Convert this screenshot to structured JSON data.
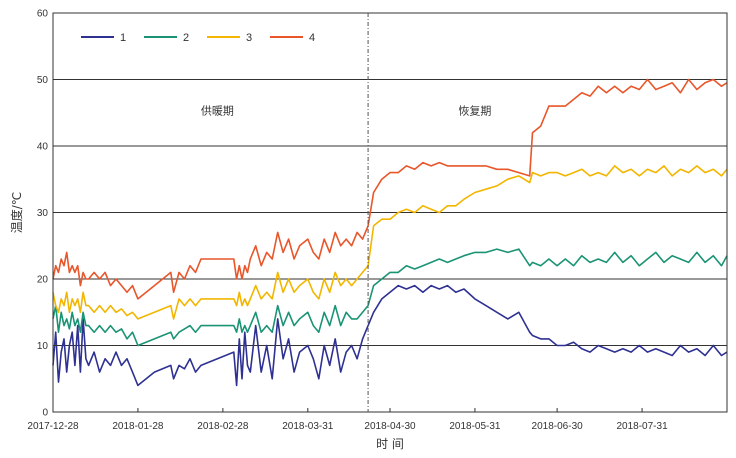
{
  "chart_data": {
    "type": "line",
    "xlabel": "时 间",
    "ylabel": "温度/℃",
    "ylim": [
      0,
      60
    ],
    "yticks": [
      0,
      10,
      20,
      30,
      40,
      50,
      60
    ],
    "xlim": [
      "2017-12-28",
      "2018-08-31"
    ],
    "xticks": [
      "2017-12-28",
      "2018-01-28",
      "2018-02-28",
      "2018-03-31",
      "2018-04-30",
      "2018-05-31",
      "2018-06-30",
      "2018-07-31"
    ],
    "grid": "horizontal",
    "legend_position": "top-left",
    "divider_date": "2018-04-22",
    "annotations": [
      {
        "text": "供暖期",
        "x": "2018-02-26",
        "y": 44.7
      },
      {
        "text": "恢复期",
        "x": "2018-05-31",
        "y": 44.7
      }
    ],
    "series": [
      {
        "name": "1",
        "color": "#2e3192",
        "x": [
          "2017-12-28",
          "2017-12-29",
          "2017-12-30",
          "2017-12-31",
          "2018-01-01",
          "2018-01-02",
          "2018-01-03",
          "2018-01-04",
          "2018-01-05",
          "2018-01-06",
          "2018-01-07",
          "2018-01-08",
          "2018-01-09",
          "2018-01-10",
          "2018-01-12",
          "2018-01-14",
          "2018-01-16",
          "2018-01-18",
          "2018-01-20",
          "2018-01-22",
          "2018-01-24",
          "2018-01-26",
          "2018-01-28",
          "2018-02-03",
          "2018-02-09",
          "2018-02-10",
          "2018-02-12",
          "2018-02-14",
          "2018-02-16",
          "2018-02-18",
          "2018-02-20",
          "2018-03-04",
          "2018-03-05",
          "2018-03-06",
          "2018-03-07",
          "2018-03-08",
          "2018-03-09",
          "2018-03-10",
          "2018-03-12",
          "2018-03-14",
          "2018-03-16",
          "2018-03-18",
          "2018-03-20",
          "2018-03-22",
          "2018-03-24",
          "2018-03-26",
          "2018-03-28",
          "2018-03-31",
          "2018-04-02",
          "2018-04-04",
          "2018-04-06",
          "2018-04-08",
          "2018-04-10",
          "2018-04-12",
          "2018-04-14",
          "2018-04-16",
          "2018-04-18",
          "2018-04-20",
          "2018-04-22",
          "2018-04-24",
          "2018-04-27",
          "2018-04-30",
          "2018-05-03",
          "2018-05-06",
          "2018-05-09",
          "2018-05-12",
          "2018-05-15",
          "2018-05-18",
          "2018-05-21",
          "2018-05-24",
          "2018-05-27",
          "2018-05-31",
          "2018-06-04",
          "2018-06-08",
          "2018-06-12",
          "2018-06-16",
          "2018-06-20",
          "2018-06-21",
          "2018-06-24",
          "2018-06-27",
          "2018-06-30",
          "2018-07-03",
          "2018-07-06",
          "2018-07-09",
          "2018-07-12",
          "2018-07-15",
          "2018-07-18",
          "2018-07-21",
          "2018-07-24",
          "2018-07-27",
          "2018-07-30",
          "2018-08-02",
          "2018-08-05",
          "2018-08-08",
          "2018-08-11",
          "2018-08-14",
          "2018-08-17",
          "2018-08-20",
          "2018-08-23",
          "2018-08-26",
          "2018-08-29",
          "2018-08-31"
        ],
        "values": [
          7,
          12,
          4.5,
          9,
          11,
          6,
          10,
          12,
          7,
          13,
          6,
          14,
          8,
          7,
          9,
          6,
          8,
          7,
          9,
          7,
          8,
          6,
          4,
          6,
          7,
          5,
          7,
          6.5,
          8,
          6,
          7,
          9,
          4,
          11,
          5,
          12,
          7,
          6,
          13,
          6,
          10,
          5,
          14,
          8,
          11,
          6,
          9,
          10,
          8,
          5,
          10,
          7,
          11,
          6,
          9,
          10,
          8,
          11,
          13,
          15,
          17,
          18,
          19,
          18.5,
          19,
          18,
          19,
          18.5,
          19,
          18,
          18.5,
          17,
          16,
          15,
          14,
          15,
          12,
          11.5,
          11,
          11,
          10,
          10,
          10.5,
          9.5,
          9,
          10,
          9.5,
          9,
          9.5,
          9,
          10,
          9,
          9.5,
          9,
          8.5,
          10,
          9,
          9.5,
          8.5,
          10,
          8.5,
          9
        ]
      },
      {
        "name": "2",
        "color": "#1a9474",
        "x": [
          "2017-12-28",
          "2017-12-29",
          "2017-12-30",
          "2017-12-31",
          "2018-01-01",
          "2018-01-02",
          "2018-01-03",
          "2018-01-04",
          "2018-01-05",
          "2018-01-06",
          "2018-01-07",
          "2018-01-08",
          "2018-01-09",
          "2018-01-10",
          "2018-01-12",
          "2018-01-14",
          "2018-01-16",
          "2018-01-18",
          "2018-01-20",
          "2018-01-22",
          "2018-01-24",
          "2018-01-26",
          "2018-01-28",
          "2018-02-03",
          "2018-02-09",
          "2018-02-10",
          "2018-02-12",
          "2018-02-14",
          "2018-02-16",
          "2018-02-18",
          "2018-02-20",
          "2018-03-04",
          "2018-03-05",
          "2018-03-06",
          "2018-03-07",
          "2018-03-08",
          "2018-03-09",
          "2018-03-10",
          "2018-03-12",
          "2018-03-14",
          "2018-03-16",
          "2018-03-18",
          "2018-03-20",
          "2018-03-22",
          "2018-03-24",
          "2018-03-26",
          "2018-03-28",
          "2018-03-31",
          "2018-04-02",
          "2018-04-04",
          "2018-04-06",
          "2018-04-08",
          "2018-04-10",
          "2018-04-12",
          "2018-04-14",
          "2018-04-16",
          "2018-04-18",
          "2018-04-20",
          "2018-04-22",
          "2018-04-24",
          "2018-04-27",
          "2018-04-30",
          "2018-05-03",
          "2018-05-06",
          "2018-05-09",
          "2018-05-12",
          "2018-05-15",
          "2018-05-18",
          "2018-05-21",
          "2018-05-24",
          "2018-05-27",
          "2018-05-31",
          "2018-06-04",
          "2018-06-08",
          "2018-06-12",
          "2018-06-16",
          "2018-06-20",
          "2018-06-21",
          "2018-06-24",
          "2018-06-27",
          "2018-06-30",
          "2018-07-03",
          "2018-07-06",
          "2018-07-09",
          "2018-07-12",
          "2018-07-15",
          "2018-07-18",
          "2018-07-21",
          "2018-07-24",
          "2018-07-27",
          "2018-07-30",
          "2018-08-02",
          "2018-08-05",
          "2018-08-08",
          "2018-08-11",
          "2018-08-14",
          "2018-08-17",
          "2018-08-20",
          "2018-08-23",
          "2018-08-26",
          "2018-08-29",
          "2018-08-31"
        ],
        "values": [
          14,
          16,
          12,
          15,
          13,
          14,
          12.5,
          15,
          13,
          14,
          12,
          15,
          13,
          13,
          12,
          13,
          12,
          13,
          12,
          12.5,
          11,
          12,
          10,
          11,
          12,
          11,
          12,
          12.5,
          13,
          12,
          13,
          13,
          12,
          14,
          12,
          13,
          12,
          13,
          15,
          12,
          13,
          12,
          16,
          13,
          15,
          13,
          14,
          15,
          13,
          12,
          15,
          13,
          16,
          13,
          15,
          14,
          14,
          15,
          16,
          19,
          20,
          21,
          21,
          22,
          21.5,
          22,
          22.5,
          23,
          22.5,
          23,
          23.5,
          24,
          24,
          24.5,
          24,
          24.5,
          22,
          22.5,
          22,
          23,
          22,
          23,
          22,
          23.5,
          22.5,
          23,
          22.5,
          24,
          22.5,
          23.5,
          22,
          23,
          24,
          22.5,
          23.5,
          23,
          22.5,
          24,
          22.5,
          23.5,
          22,
          23.5
        ]
      },
      {
        "name": "3",
        "color": "#f2b600",
        "x": [
          "2017-12-28",
          "2017-12-29",
          "2017-12-30",
          "2017-12-31",
          "2018-01-01",
          "2018-01-02",
          "2018-01-03",
          "2018-01-04",
          "2018-01-05",
          "2018-01-06",
          "2018-01-07",
          "2018-01-08",
          "2018-01-09",
          "2018-01-10",
          "2018-01-12",
          "2018-01-14",
          "2018-01-16",
          "2018-01-18",
          "2018-01-20",
          "2018-01-22",
          "2018-01-24",
          "2018-01-26",
          "2018-01-28",
          "2018-02-03",
          "2018-02-09",
          "2018-02-10",
          "2018-02-12",
          "2018-02-14",
          "2018-02-16",
          "2018-02-18",
          "2018-02-20",
          "2018-03-04",
          "2018-03-05",
          "2018-03-06",
          "2018-03-07",
          "2018-03-08",
          "2018-03-09",
          "2018-03-10",
          "2018-03-12",
          "2018-03-14",
          "2018-03-16",
          "2018-03-18",
          "2018-03-20",
          "2018-03-22",
          "2018-03-24",
          "2018-03-26",
          "2018-03-28",
          "2018-03-31",
          "2018-04-02",
          "2018-04-04",
          "2018-04-06",
          "2018-04-08",
          "2018-04-10",
          "2018-04-12",
          "2018-04-14",
          "2018-04-16",
          "2018-04-18",
          "2018-04-20",
          "2018-04-22",
          "2018-04-24",
          "2018-04-27",
          "2018-04-30",
          "2018-05-03",
          "2018-05-06",
          "2018-05-09",
          "2018-05-12",
          "2018-05-15",
          "2018-05-18",
          "2018-05-21",
          "2018-05-24",
          "2018-05-27",
          "2018-05-31",
          "2018-06-04",
          "2018-06-08",
          "2018-06-12",
          "2018-06-16",
          "2018-06-20",
          "2018-06-21",
          "2018-06-24",
          "2018-06-27",
          "2018-06-30",
          "2018-07-03",
          "2018-07-06",
          "2018-07-09",
          "2018-07-12",
          "2018-07-15",
          "2018-07-18",
          "2018-07-21",
          "2018-07-24",
          "2018-07-27",
          "2018-07-30",
          "2018-08-02",
          "2018-08-05",
          "2018-08-08",
          "2018-08-11",
          "2018-08-14",
          "2018-08-17",
          "2018-08-20",
          "2018-08-23",
          "2018-08-26",
          "2018-08-29",
          "2018-08-31"
        ],
        "values": [
          18,
          16,
          15,
          17,
          16,
          18,
          15,
          17,
          16,
          17,
          15,
          18,
          16,
          16,
          15,
          16,
          15,
          16,
          15,
          15.5,
          14.5,
          15,
          14,
          15,
          16,
          14,
          17,
          16,
          17,
          16,
          17,
          17,
          16,
          18,
          16,
          17,
          16,
          17,
          19,
          17,
          18,
          17,
          21,
          18,
          20,
          18,
          19,
          20,
          18,
          17,
          20,
          18,
          21,
          19,
          20,
          19,
          20,
          21,
          22,
          28,
          29,
          29,
          30,
          30.5,
          30,
          31,
          30.5,
          30,
          31,
          31,
          32,
          33,
          33.5,
          34,
          35,
          35.5,
          34.5,
          36,
          35.5,
          36,
          36,
          35.5,
          36,
          36.5,
          35.5,
          36,
          35.5,
          37,
          36,
          36.5,
          35.5,
          36.5,
          36,
          37,
          35.5,
          36.5,
          36,
          37,
          36,
          36.5,
          35.5,
          36.5
        ]
      },
      {
        "name": "4",
        "color": "#e8562a",
        "x": [
          "2017-12-28",
          "2017-12-29",
          "2017-12-30",
          "2017-12-31",
          "2018-01-01",
          "2018-01-02",
          "2018-01-03",
          "2018-01-04",
          "2018-01-05",
          "2018-01-06",
          "2018-01-07",
          "2018-01-08",
          "2018-01-09",
          "2018-01-10",
          "2018-01-12",
          "2018-01-14",
          "2018-01-16",
          "2018-01-18",
          "2018-01-20",
          "2018-01-22",
          "2018-01-24",
          "2018-01-26",
          "2018-01-28",
          "2018-02-03",
          "2018-02-09",
          "2018-02-10",
          "2018-02-12",
          "2018-02-14",
          "2018-02-16",
          "2018-02-18",
          "2018-02-20",
          "2018-03-04",
          "2018-03-05",
          "2018-03-06",
          "2018-03-07",
          "2018-03-08",
          "2018-03-09",
          "2018-03-10",
          "2018-03-12",
          "2018-03-14",
          "2018-03-16",
          "2018-03-18",
          "2018-03-20",
          "2018-03-22",
          "2018-03-24",
          "2018-03-26",
          "2018-03-28",
          "2018-03-31",
          "2018-04-02",
          "2018-04-04",
          "2018-04-06",
          "2018-04-08",
          "2018-04-10",
          "2018-04-12",
          "2018-04-14",
          "2018-04-16",
          "2018-04-18",
          "2018-04-20",
          "2018-04-22",
          "2018-04-24",
          "2018-04-27",
          "2018-04-30",
          "2018-05-03",
          "2018-05-06",
          "2018-05-09",
          "2018-05-12",
          "2018-05-15",
          "2018-05-18",
          "2018-05-21",
          "2018-05-24",
          "2018-05-27",
          "2018-05-31",
          "2018-06-04",
          "2018-06-08",
          "2018-06-12",
          "2018-06-16",
          "2018-06-20",
          "2018-06-21",
          "2018-06-24",
          "2018-06-27",
          "2018-06-30",
          "2018-07-03",
          "2018-07-06",
          "2018-07-09",
          "2018-07-12",
          "2018-07-15",
          "2018-07-18",
          "2018-07-21",
          "2018-07-24",
          "2018-07-27",
          "2018-07-30",
          "2018-08-02",
          "2018-08-05",
          "2018-08-08",
          "2018-08-11",
          "2018-08-14",
          "2018-08-17",
          "2018-08-20",
          "2018-08-23",
          "2018-08-26",
          "2018-08-29",
          "2018-08-31"
        ],
        "values": [
          20,
          22,
          21,
          23,
          22,
          24,
          21,
          22,
          21,
          22,
          19,
          21,
          20,
          20,
          21,
          20,
          21,
          19,
          20,
          19,
          18,
          19,
          17,
          19,
          21,
          18,
          21,
          20,
          22,
          21,
          23,
          23,
          20,
          22,
          20,
          22,
          21,
          23,
          25,
          22,
          24,
          23,
          27,
          24,
          26,
          23,
          25,
          26,
          24,
          23,
          26,
          24,
          27,
          25,
          26,
          25,
          27,
          26,
          28,
          33,
          35,
          36,
          36,
          37,
          36.5,
          37.5,
          37,
          37.5,
          37,
          37,
          37,
          37,
          37,
          36.5,
          36.5,
          36,
          35.5,
          42,
          43,
          46,
          46,
          46,
          47,
          48,
          47.5,
          49,
          48,
          49,
          48,
          49,
          48.5,
          50,
          48.5,
          49,
          49.5,
          48,
          50,
          48.5,
          49.5,
          50,
          49,
          49.5
        ]
      }
    ]
  }
}
